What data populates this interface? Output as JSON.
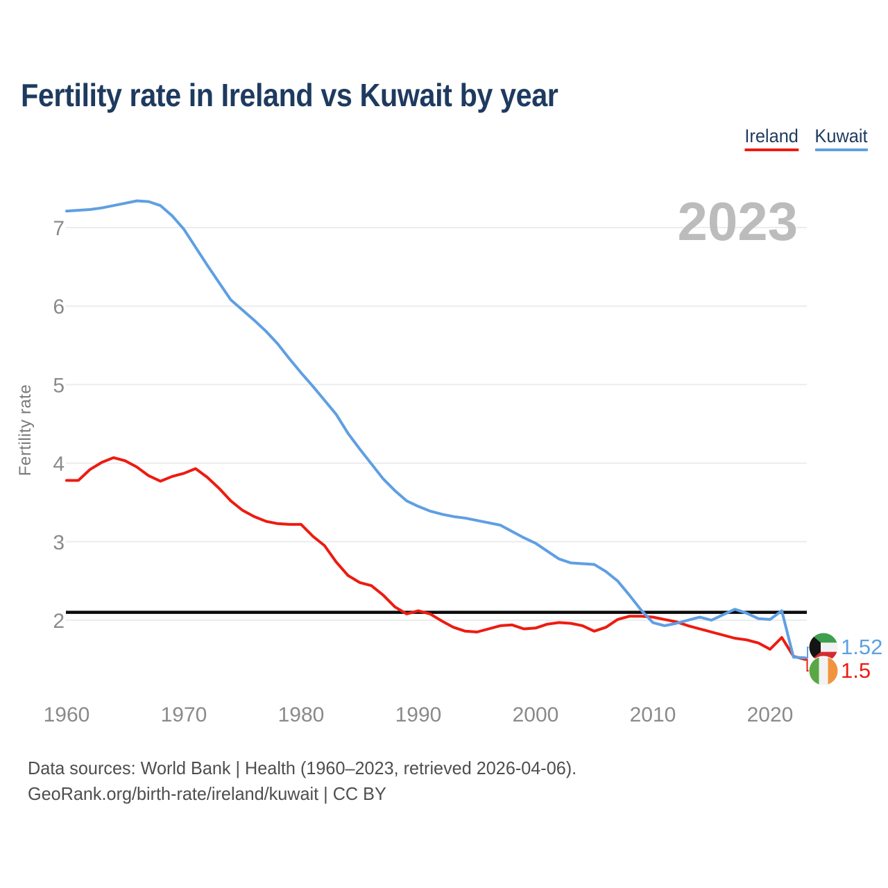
{
  "title": "Fertility rate in Ireland vs Kuwait by year",
  "watermark_year": "2023",
  "legend": {
    "items": [
      {
        "label": "Ireland",
        "color": "#ed1b10"
      },
      {
        "label": "Kuwait",
        "color": "#5e9fe3"
      }
    ]
  },
  "y_axis": {
    "label": "Fertility rate",
    "ticks": [
      7,
      6,
      5,
      4,
      3,
      2
    ]
  },
  "x_axis": {
    "ticks": [
      1960,
      1970,
      1980,
      1990,
      2000,
      2010,
      2020
    ]
  },
  "reference_line": {
    "value": 2.1,
    "color": "#0a0a0a"
  },
  "end_labels": [
    {
      "series": "Kuwait",
      "value": "1.52",
      "flag_icon": "kuwait-flag-icon"
    },
    {
      "series": "Ireland",
      "value": "1.5",
      "flag_icon": "ireland-flag-icon"
    }
  ],
  "footer": {
    "line1": "Data sources: World Bank | Health (1960–2023, retrieved 2026-04-06).",
    "line2": "GeoRank.org/birth-rate/ireland/kuwait | CC BY"
  },
  "chart_data": {
    "type": "line",
    "title": "Fertility rate in Ireland vs Kuwait by year",
    "xlabel": "",
    "ylabel": "Fertility rate",
    "xlim": [
      1960,
      2023
    ],
    "ylim": [
      1.3,
      7.6
    ],
    "grid": "horizontal",
    "legend_position": "top-right",
    "reference_line_y": 2.1,
    "x": [
      1960,
      1961,
      1962,
      1963,
      1964,
      1965,
      1966,
      1967,
      1968,
      1969,
      1970,
      1971,
      1972,
      1973,
      1974,
      1975,
      1976,
      1977,
      1978,
      1979,
      1980,
      1981,
      1982,
      1983,
      1984,
      1985,
      1986,
      1987,
      1988,
      1989,
      1990,
      1991,
      1992,
      1993,
      1994,
      1995,
      1996,
      1997,
      1998,
      1999,
      2000,
      2001,
      2002,
      2003,
      2004,
      2005,
      2006,
      2007,
      2008,
      2009,
      2010,
      2011,
      2012,
      2013,
      2014,
      2015,
      2016,
      2017,
      2018,
      2019,
      2020,
      2021,
      2022,
      2023
    ],
    "series": [
      {
        "name": "Ireland",
        "color": "#ed1b10",
        "end_value": 1.5,
        "values": [
          3.78,
          3.78,
          3.92,
          4.01,
          4.07,
          4.03,
          3.95,
          3.84,
          3.77,
          3.83,
          3.87,
          3.93,
          3.82,
          3.68,
          3.52,
          3.4,
          3.32,
          3.26,
          3.23,
          3.22,
          3.22,
          3.07,
          2.95,
          2.74,
          2.57,
          2.48,
          2.44,
          2.32,
          2.17,
          2.08,
          2.12,
          2.08,
          1.99,
          1.91,
          1.86,
          1.85,
          1.89,
          1.93,
          1.94,
          1.89,
          1.9,
          1.95,
          1.97,
          1.96,
          1.93,
          1.86,
          1.91,
          2.01,
          2.05,
          2.05,
          2.04,
          2.01,
          1.98,
          1.93,
          1.89,
          1.85,
          1.81,
          1.77,
          1.75,
          1.71,
          1.63,
          1.78,
          1.54,
          1.5
        ]
      },
      {
        "name": "Kuwait",
        "color": "#5e9fe3",
        "end_value": 1.52,
        "values": [
          7.21,
          7.22,
          7.23,
          7.25,
          7.28,
          7.31,
          7.34,
          7.33,
          7.28,
          7.15,
          6.98,
          6.75,
          6.52,
          6.3,
          6.08,
          5.95,
          5.82,
          5.68,
          5.52,
          5.33,
          5.15,
          4.98,
          4.8,
          4.62,
          4.38,
          4.18,
          3.99,
          3.8,
          3.65,
          3.52,
          3.45,
          3.39,
          3.35,
          3.32,
          3.3,
          3.27,
          3.24,
          3.21,
          3.13,
          3.05,
          2.98,
          2.88,
          2.78,
          2.73,
          2.72,
          2.71,
          2.62,
          2.5,
          2.32,
          2.13,
          1.97,
          1.93,
          1.96,
          2.0,
          2.04,
          2.0,
          2.07,
          2.14,
          2.09,
          2.02,
          2.01,
          2.12,
          1.53,
          1.52
        ]
      }
    ]
  }
}
